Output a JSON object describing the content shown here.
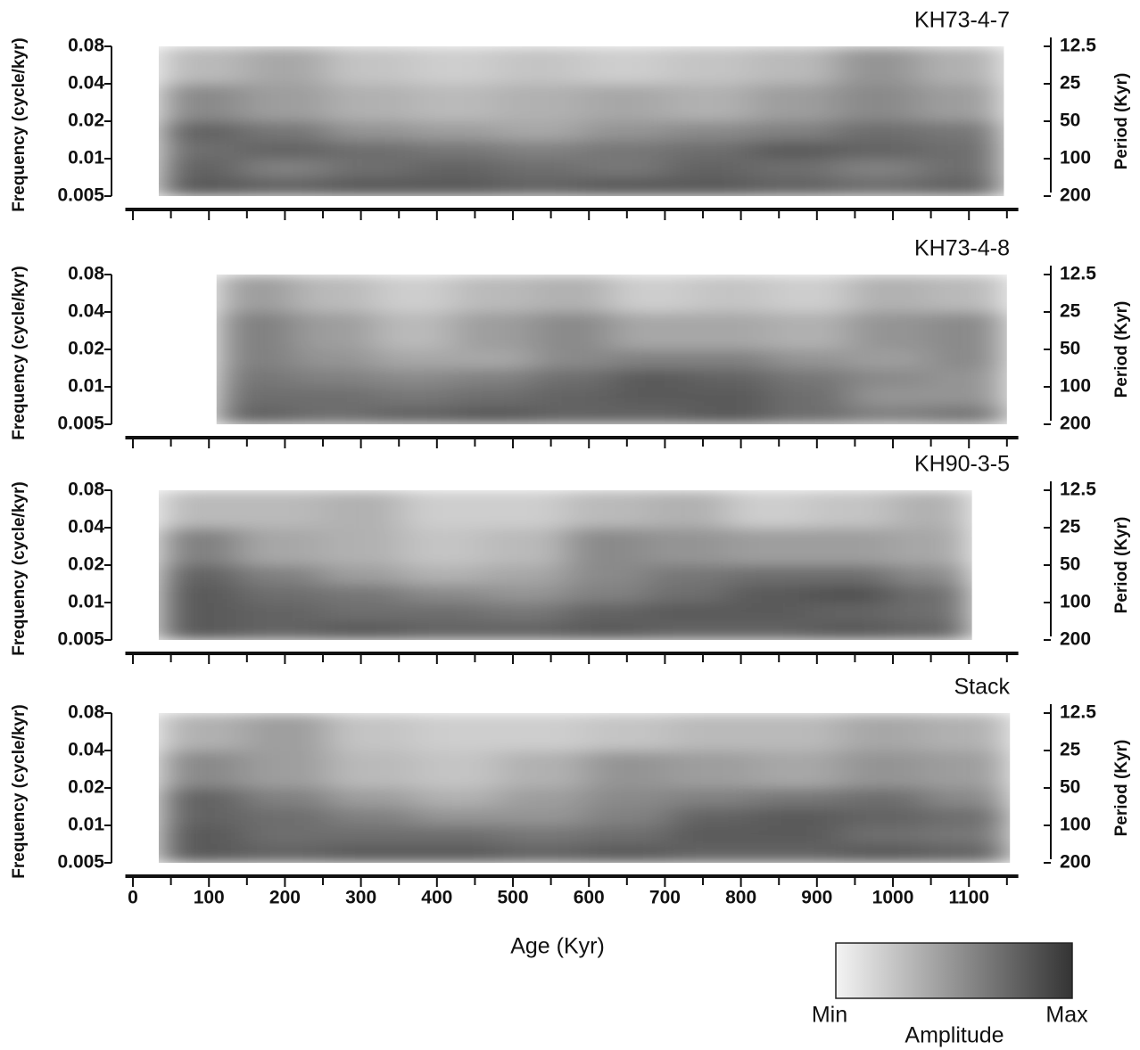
{
  "chart_data": [
    {
      "type": "heatmap",
      "title": "KH73-4-7",
      "y_label": "Frequency (cycle/kyr)",
      "y2_label": "Period (Kyr)",
      "xlim": [
        -10,
        1165
      ],
      "ylim": [
        0.005,
        0.08
      ],
      "ylog": true,
      "yticks": [
        0.08,
        0.04,
        0.02,
        0.01,
        0.005
      ],
      "y2lim": [
        200,
        12.5
      ],
      "y2log": true,
      "y2ticks": [
        12.5,
        25,
        50,
        100,
        200
      ],
      "colormap": [
        "#f4f4f4",
        "#343434"
      ],
      "x_edges": [
        34,
        145.2,
        256.4,
        367.6,
        478.8,
        590,
        701.2,
        812.4,
        923.6,
        1034.8,
        1146
      ],
      "y_edges": [
        0.005,
        0.0071,
        0.01,
        0.014,
        0.02,
        0.04,
        0.08
      ],
      "values": [
        [
          0.8,
          0.75,
          0.8,
          0.8,
          0.75,
          0.8,
          0.8,
          0.75,
          0.7,
          0.75
        ],
        [
          0.75,
          0.6,
          0.7,
          0.75,
          0.7,
          0.65,
          0.75,
          0.7,
          0.6,
          0.7
        ],
        [
          0.7,
          0.75,
          0.7,
          0.65,
          0.6,
          0.65,
          0.7,
          0.8,
          0.75,
          0.7
        ],
        [
          0.75,
          0.65,
          0.5,
          0.45,
          0.4,
          0.5,
          0.55,
          0.6,
          0.7,
          0.65
        ],
        [
          0.55,
          0.45,
          0.35,
          0.3,
          0.35,
          0.4,
          0.35,
          0.45,
          0.55,
          0.45
        ],
        [
          0.3,
          0.4,
          0.25,
          0.2,
          0.25,
          0.2,
          0.25,
          0.3,
          0.5,
          0.35
        ]
      ]
    },
    {
      "type": "heatmap",
      "title": "KH73-4-8",
      "y_label": "Frequency (cycle/kyr)",
      "y2_label": "Period (Kyr)",
      "xlim": [
        -10,
        1165
      ],
      "ylim": [
        0.005,
        0.08
      ],
      "ylog": true,
      "yticks": [
        0.08,
        0.04,
        0.02,
        0.01,
        0.005
      ],
      "y2lim": [
        200,
        12.5
      ],
      "y2log": true,
      "y2ticks": [
        12.5,
        25,
        50,
        100,
        200
      ],
      "colormap": [
        "#f4f4f4",
        "#343434"
      ],
      "x_edges": [
        110,
        214,
        318,
        422,
        526,
        630,
        734,
        838,
        942,
        1046,
        1150
      ],
      "y_edges": [
        0.005,
        0.0071,
        0.01,
        0.014,
        0.02,
        0.04,
        0.08
      ],
      "values": [
        [
          0.75,
          0.7,
          0.75,
          0.8,
          0.75,
          0.75,
          0.8,
          0.7,
          0.6,
          0.65
        ],
        [
          0.7,
          0.7,
          0.65,
          0.7,
          0.75,
          0.8,
          0.8,
          0.7,
          0.5,
          0.5
        ],
        [
          0.65,
          0.6,
          0.55,
          0.6,
          0.7,
          0.8,
          0.75,
          0.65,
          0.55,
          0.5
        ],
        [
          0.6,
          0.5,
          0.4,
          0.4,
          0.55,
          0.6,
          0.6,
          0.5,
          0.45,
          0.55
        ],
        [
          0.6,
          0.45,
          0.3,
          0.45,
          0.55,
          0.4,
          0.4,
          0.35,
          0.5,
          0.55
        ],
        [
          0.45,
          0.3,
          0.2,
          0.3,
          0.35,
          0.2,
          0.25,
          0.2,
          0.35,
          0.3
        ]
      ]
    },
    {
      "type": "heatmap",
      "title": "KH90-3-5",
      "y_label": "Frequency (cycle/kyr)",
      "y2_label": "Period (Kyr)",
      "xlim": [
        -10,
        1165
      ],
      "ylim": [
        0.005,
        0.08
      ],
      "ylog": true,
      "yticks": [
        0.08,
        0.04,
        0.02,
        0.01,
        0.005
      ],
      "y2lim": [
        200,
        12.5
      ],
      "y2log": true,
      "y2ticks": [
        12.5,
        25,
        50,
        100,
        200
      ],
      "colormap": [
        "#f4f4f4",
        "#343434"
      ],
      "x_edges": [
        34,
        141,
        248,
        355,
        462,
        569,
        676,
        783,
        890,
        997,
        1104
      ],
      "y_edges": [
        0.005,
        0.0071,
        0.01,
        0.014,
        0.02,
        0.04,
        0.08
      ],
      "values": [
        [
          0.8,
          0.75,
          0.8,
          0.75,
          0.75,
          0.8,
          0.75,
          0.75,
          0.8,
          0.75
        ],
        [
          0.8,
          0.75,
          0.7,
          0.7,
          0.65,
          0.75,
          0.8,
          0.8,
          0.75,
          0.7
        ],
        [
          0.8,
          0.7,
          0.65,
          0.55,
          0.5,
          0.6,
          0.7,
          0.8,
          0.85,
          0.7
        ],
        [
          0.75,
          0.6,
          0.45,
          0.35,
          0.4,
          0.55,
          0.65,
          0.7,
          0.7,
          0.55
        ],
        [
          0.6,
          0.4,
          0.35,
          0.25,
          0.3,
          0.55,
          0.5,
          0.45,
          0.45,
          0.4
        ],
        [
          0.3,
          0.3,
          0.35,
          0.2,
          0.2,
          0.3,
          0.35,
          0.2,
          0.25,
          0.35
        ]
      ]
    },
    {
      "type": "heatmap",
      "title": "Stack",
      "y_label": "Frequency (cycle/kyr)",
      "y2_label": "Period (Kyr)",
      "x_label": "Age (Kyr)",
      "xlim": [
        -10,
        1165
      ],
      "xticks": [
        0,
        100,
        200,
        300,
        400,
        500,
        600,
        700,
        800,
        900,
        1000,
        1100
      ],
      "xminorticks": [
        50,
        150,
        250,
        350,
        450,
        550,
        650,
        750,
        850,
        950,
        1050,
        1150
      ],
      "ylim": [
        0.005,
        0.08
      ],
      "ylog": true,
      "yticks": [
        0.08,
        0.04,
        0.02,
        0.01,
        0.005
      ],
      "y2lim": [
        200,
        12.5
      ],
      "y2log": true,
      "y2ticks": [
        12.5,
        25,
        50,
        100,
        200
      ],
      "colormap": [
        "#f4f4f4",
        "#343434"
      ],
      "x_edges": [
        34,
        146,
        258,
        370,
        482,
        594,
        706,
        818,
        930,
        1042,
        1154
      ],
      "y_edges": [
        0.005,
        0.0071,
        0.01,
        0.014,
        0.02,
        0.04,
        0.08
      ],
      "values": [
        [
          0.8,
          0.75,
          0.8,
          0.8,
          0.75,
          0.8,
          0.75,
          0.75,
          0.8,
          0.75
        ],
        [
          0.8,
          0.7,
          0.7,
          0.7,
          0.65,
          0.7,
          0.8,
          0.8,
          0.7,
          0.65
        ],
        [
          0.75,
          0.7,
          0.6,
          0.5,
          0.5,
          0.6,
          0.75,
          0.8,
          0.75,
          0.7
        ],
        [
          0.75,
          0.6,
          0.45,
          0.35,
          0.45,
          0.55,
          0.6,
          0.65,
          0.7,
          0.55
        ],
        [
          0.55,
          0.45,
          0.3,
          0.25,
          0.35,
          0.5,
          0.45,
          0.4,
          0.5,
          0.45
        ],
        [
          0.35,
          0.45,
          0.25,
          0.2,
          0.2,
          0.25,
          0.3,
          0.3,
          0.4,
          0.35
        ]
      ],
      "colorbar": {
        "label": "Amplitude",
        "min_label": "Min",
        "max_label": "Max"
      }
    }
  ]
}
